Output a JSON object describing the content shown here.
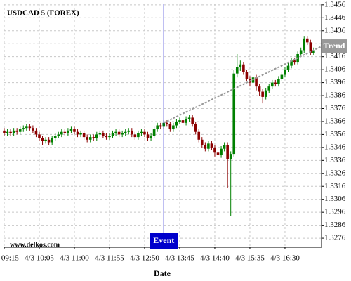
{
  "chart_data": {
    "type": "candlestick",
    "title": "USDCAD 5 (FOREX)",
    "xlabel": "Date",
    "watermark": "www.delkos.com",
    "categories": [
      "4/3 09:15",
      null,
      null,
      null,
      null,
      null,
      null,
      null,
      null,
      null,
      null,
      "4/3 10:05",
      null,
      null,
      null,
      null,
      null,
      null,
      null,
      null,
      null,
      null,
      "4/3 11:00",
      null,
      null,
      null,
      null,
      null,
      null,
      null,
      null,
      null,
      null,
      "4/3 11:55",
      null,
      null,
      null,
      null,
      null,
      null,
      null,
      null,
      null,
      null,
      "4/3 12:50",
      null,
      null,
      null,
      null,
      null,
      null,
      null,
      null,
      null,
      null,
      "4/3 13:45",
      null,
      null,
      null,
      null,
      null,
      null,
      null,
      null,
      null,
      null,
      "4/3 14:40",
      null,
      null,
      null,
      null,
      null,
      null,
      null,
      null,
      null,
      null,
      "4/3 15:35",
      null,
      null,
      null,
      null,
      null,
      null,
      null,
      null,
      null,
      null,
      "4/3 16:30",
      null,
      null,
      null,
      null,
      null,
      null,
      null,
      null,
      null
    ],
    "open": [
      1.3359,
      1.3357,
      1.3358,
      1.3357,
      1.3359,
      1.3358,
      1.336,
      1.3361,
      1.3362,
      1.3361,
      1.3359,
      1.3356,
      1.3353,
      1.3351,
      1.3352,
      1.335,
      1.3353,
      1.3355,
      1.3356,
      1.3358,
      1.3357,
      1.3359,
      1.336,
      1.3358,
      1.3356,
      1.3357,
      1.3354,
      1.3352,
      1.3354,
      1.3353,
      1.3356,
      1.3357,
      1.3355,
      1.3354,
      1.3355,
      1.3357,
      1.3358,
      1.3356,
      1.3357,
      1.3358,
      1.3359,
      1.3356,
      1.3354,
      1.3357,
      1.3358,
      1.3356,
      1.3353,
      1.3355,
      1.336,
      1.3363,
      1.3362,
      1.3365,
      1.3364,
      1.336,
      1.3363,
      1.3366,
      1.3367,
      1.3365,
      1.3368,
      1.3369,
      1.3364,
      1.3358,
      1.3352,
      1.3348,
      1.3345,
      1.3349,
      1.3346,
      1.3342,
      1.334,
      1.3345,
      1.3348,
      1.3337,
      1.3341,
      1.3403,
      1.3408,
      1.341,
      1.3404,
      1.3399,
      1.3396,
      1.34,
      1.3393,
      1.3389,
      1.3385,
      1.339,
      1.3393,
      1.3396,
      1.3395,
      1.3399,
      1.3402,
      1.3406,
      1.3409,
      1.3413,
      1.3412,
      1.3418,
      1.3421,
      1.343,
      1.3427,
      1.3419
    ],
    "high": [
      1.3361,
      1.336,
      1.336,
      1.3361,
      1.3361,
      1.3362,
      1.3363,
      1.3364,
      1.3364,
      1.3363,
      1.3361,
      1.3358,
      1.3355,
      1.3354,
      1.3354,
      1.3355,
      1.3357,
      1.3358,
      1.336,
      1.336,
      1.3361,
      1.3362,
      1.3362,
      1.336,
      1.3359,
      1.3359,
      1.3356,
      1.3356,
      1.3356,
      1.3358,
      1.3359,
      1.3359,
      1.3357,
      1.3357,
      1.3359,
      1.336,
      1.336,
      1.3359,
      1.336,
      1.3361,
      1.3361,
      1.3358,
      1.3359,
      1.336,
      1.336,
      1.3358,
      1.3357,
      1.3362,
      1.3365,
      1.3365,
      1.3367,
      1.3367,
      1.3366,
      1.3365,
      1.3368,
      1.3369,
      1.3369,
      1.337,
      1.3371,
      1.3371,
      1.3366,
      1.336,
      1.3354,
      1.335,
      1.3351,
      1.3351,
      1.3348,
      1.3344,
      1.3347,
      1.335,
      1.335,
      1.3343,
      1.3406,
      1.3418,
      1.3413,
      1.3412,
      1.3406,
      1.3401,
      1.3402,
      1.3402,
      1.3395,
      1.3391,
      1.3392,
      1.3395,
      1.3398,
      1.3398,
      1.3401,
      1.3404,
      1.3408,
      1.3411,
      1.3415,
      1.3415,
      1.342,
      1.3423,
      1.3432,
      1.3432,
      1.3429,
      1.3423
    ],
    "low": [
      1.3355,
      1.3355,
      1.3355,
      1.3355,
      1.3356,
      1.3356,
      1.3358,
      1.3359,
      1.3359,
      1.3357,
      1.3354,
      1.3351,
      1.3348,
      1.3349,
      1.3348,
      1.3348,
      1.3351,
      1.3353,
      1.3354,
      1.3355,
      1.3355,
      1.3357,
      1.3356,
      1.3354,
      1.3354,
      1.3352,
      1.335,
      1.335,
      1.3351,
      1.3351,
      1.3354,
      1.3353,
      1.3352,
      1.3352,
      1.3353,
      1.3355,
      1.3354,
      1.3354,
      1.3355,
      1.3356,
      1.3354,
      1.3352,
      1.3352,
      1.3355,
      1.3354,
      1.3351,
      1.3351,
      1.3353,
      1.3358,
      1.336,
      1.336,
      1.3362,
      1.3358,
      1.3358,
      1.3361,
      1.3364,
      1.3363,
      1.3363,
      1.3366,
      1.3362,
      1.3356,
      1.335,
      1.3346,
      1.3343,
      1.3343,
      1.3344,
      1.3339,
      1.3336,
      1.3338,
      1.3343,
      1.3315,
      1.3293,
      1.3339,
      1.34,
      1.3405,
      1.3402,
      1.3397,
      1.3393,
      1.3394,
      1.339,
      1.3386,
      1.338,
      1.3383,
      1.3388,
      1.3391,
      1.3393,
      1.3393,
      1.3397,
      1.34,
      1.3404,
      1.3407,
      1.341,
      1.341,
      1.3416,
      1.3419,
      1.3425,
      1.3417,
      1.3417
    ],
    "close": [
      1.3357,
      1.3358,
      1.3357,
      1.3359,
      1.3358,
      1.336,
      1.3361,
      1.3362,
      1.3361,
      1.3359,
      1.3356,
      1.3353,
      1.3351,
      1.3352,
      1.335,
      1.3353,
      1.3355,
      1.3356,
      1.3358,
      1.3357,
      1.3359,
      1.336,
      1.3358,
      1.3356,
      1.3357,
      1.3354,
      1.3352,
      1.3354,
      1.3353,
      1.3356,
      1.3357,
      1.3355,
      1.3354,
      1.3355,
      1.3357,
      1.3358,
      1.3356,
      1.3357,
      1.3358,
      1.3359,
      1.3356,
      1.3354,
      1.3357,
      1.3358,
      1.3356,
      1.3353,
      1.3355,
      1.336,
      1.3363,
      1.3362,
      1.3365,
      1.3364,
      1.336,
      1.3363,
      1.3366,
      1.3367,
      1.3365,
      1.3368,
      1.3369,
      1.3364,
      1.3358,
      1.3352,
      1.3348,
      1.3345,
      1.3349,
      1.3346,
      1.3342,
      1.334,
      1.3345,
      1.3348,
      1.3337,
      1.3341,
      1.3403,
      1.3408,
      1.341,
      1.3404,
      1.3399,
      1.3396,
      1.34,
      1.3393,
      1.3389,
      1.3385,
      1.339,
      1.3393,
      1.3396,
      1.3395,
      1.3399,
      1.3402,
      1.3406,
      1.3409,
      1.3413,
      1.3412,
      1.3418,
      1.3421,
      1.343,
      1.3427,
      1.3419,
      1.3421
    ],
    "up_color": "#008000",
    "down_color": "#8b0000",
    "ylim": [
      1.3269,
      1.3457
    ],
    "yticks": [
      1.3456,
      1.3446,
      1.3436,
      1.3426,
      1.3416,
      1.3406,
      1.3396,
      1.3386,
      1.3376,
      1.3366,
      1.3356,
      1.3346,
      1.3336,
      1.3326,
      1.3316,
      1.3306,
      1.3296,
      1.3286,
      1.3276
    ],
    "grid": true,
    "event": {
      "label": "Event",
      "index": 50,
      "color": "#0000cc"
    },
    "trend": {
      "label": "Trend",
      "start_index": 50,
      "start_value": 1.3365,
      "end_index": 97,
      "end_value": 1.3421,
      "color": "#999999"
    }
  }
}
